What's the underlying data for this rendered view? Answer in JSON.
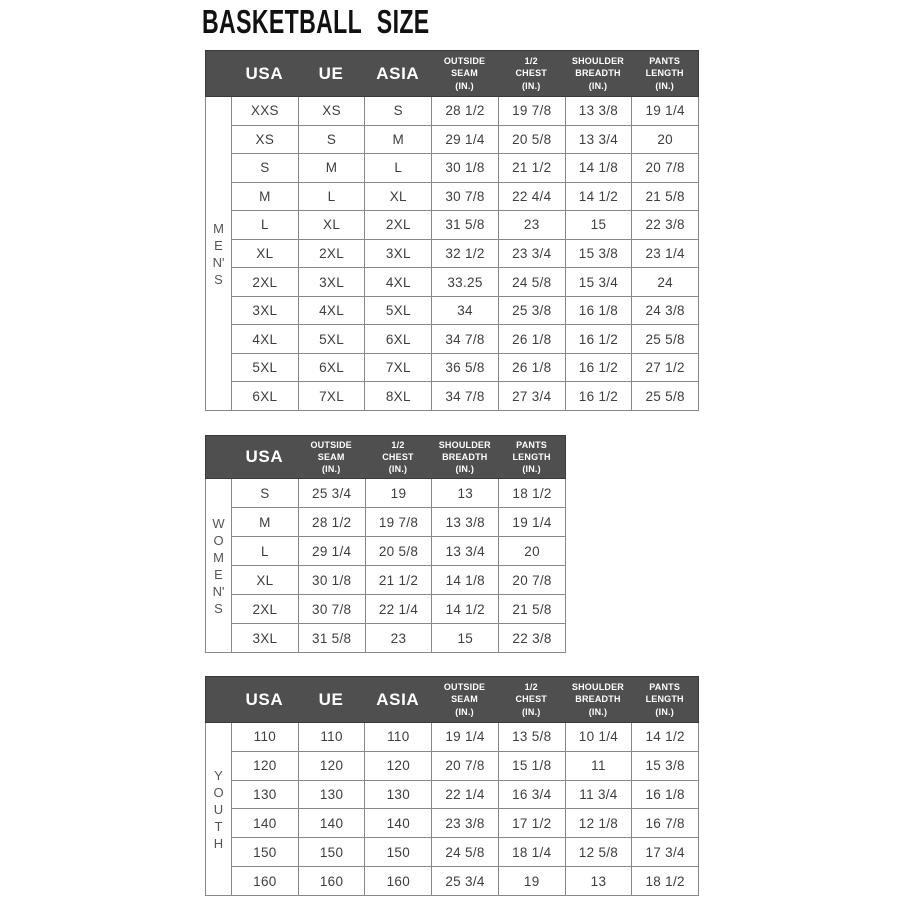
{
  "page": {
    "title": "BASKETBALL SIZE"
  },
  "colors": {
    "header_bg": "#4f4f4f",
    "header_border": "#3a3a3a",
    "header_text": "#ffffff",
    "grid_border": "#888888",
    "cell_text": "#3e3e3e",
    "label_text": "#555555",
    "title_text": "#111111"
  },
  "tables": {
    "mens": {
      "section_label": "MEN'S",
      "label_letters": [
        "M",
        "E",
        "N'",
        "S"
      ],
      "columns": [
        {
          "label": "USA",
          "style": "big"
        },
        {
          "label": "UE",
          "style": "big"
        },
        {
          "label": "ASIA",
          "style": "big"
        },
        {
          "label": "OUTSIDE\nSEAM\n(IN.)",
          "style": "small"
        },
        {
          "label": "1/2\nCHEST\n(IN.)",
          "style": "small"
        },
        {
          "label": "SHOULDER\nBREADTH\n(IN.)",
          "style": "small"
        },
        {
          "label": "PANTS\nLENGTH\n(IN.)",
          "style": "small"
        }
      ],
      "rows": [
        [
          "XXS",
          "XS",
          "S",
          "28 1/2",
          "19 7/8",
          "13 3/8",
          "19 1/4"
        ],
        [
          "XS",
          "S",
          "M",
          "29 1/4",
          "20 5/8",
          "13 3/4",
          "20"
        ],
        [
          "S",
          "M",
          "L",
          "30 1/8",
          "21 1/2",
          "14 1/8",
          "20 7/8"
        ],
        [
          "M",
          "L",
          "XL",
          "30 7/8",
          "22 4/4",
          "14 1/2",
          "21 5/8"
        ],
        [
          "L",
          "XL",
          "2XL",
          "31 5/8",
          "23",
          "15",
          "22 3/8"
        ],
        [
          "XL",
          "2XL",
          "3XL",
          "32 1/2",
          "23 3/4",
          "15 3/8",
          "23 1/4"
        ],
        [
          "2XL",
          "3XL",
          "4XL",
          "33.25",
          "24 5/8",
          "15 3/4",
          "24"
        ],
        [
          "3XL",
          "4XL",
          "5XL",
          "34",
          "25 3/8",
          "16 1/8",
          "24 3/8"
        ],
        [
          "4XL",
          "5XL",
          "6XL",
          "34 7/8",
          "26 1/8",
          "16 1/2",
          "25 5/8"
        ],
        [
          "5XL",
          "6XL",
          "7XL",
          "36 5/8",
          "26 1/8",
          "16 1/2",
          "27 1/2"
        ],
        [
          "6XL",
          "7XL",
          "8XL",
          "34 7/8",
          "27 3/4",
          "16 1/2",
          "25 5/8"
        ]
      ]
    },
    "womens": {
      "section_label": "WOMEN'S",
      "label_letters": [
        "W",
        "O",
        "M",
        "E",
        "N'",
        "S"
      ],
      "columns": [
        {
          "label": "USA",
          "style": "big"
        },
        {
          "label": "OUTSIDE\nSEAM\n(IN.)",
          "style": "small"
        },
        {
          "label": "1/2\nCHEST\n(IN.)",
          "style": "small"
        },
        {
          "label": "SHOULDER\nBREADTH\n(IN.)",
          "style": "small"
        },
        {
          "label": "PANTS\nLENGTH\n(IN.)",
          "style": "small"
        }
      ],
      "rows": [
        [
          "S",
          "25 3/4",
          "19",
          "13",
          "18 1/2"
        ],
        [
          "M",
          "28 1/2",
          "19 7/8",
          "13 3/8",
          "19 1/4"
        ],
        [
          "L",
          "29 1/4",
          "20 5/8",
          "13 3/4",
          "20"
        ],
        [
          "XL",
          "30 1/8",
          "21 1/2",
          "14 1/8",
          "20 7/8"
        ],
        [
          "2XL",
          "30 7/8",
          "22 1/4",
          "14 1/2",
          "21 5/8"
        ],
        [
          "3XL",
          "31 5/8",
          "23",
          "15",
          "22 3/8"
        ]
      ]
    },
    "youth": {
      "section_label": "YOUTH",
      "label_letters": [
        "Y",
        "O",
        "U",
        "T",
        "H"
      ],
      "columns": [
        {
          "label": "USA",
          "style": "big"
        },
        {
          "label": "UE",
          "style": "big"
        },
        {
          "label": "ASIA",
          "style": "big"
        },
        {
          "label": "OUTSIDE\nSEAM\n(IN.)",
          "style": "small"
        },
        {
          "label": "1/2\nCHEST\n(IN.)",
          "style": "small"
        },
        {
          "label": "SHOULDER\nBREADTH\n(IN.)",
          "style": "small"
        },
        {
          "label": "PANTS\nLENGTH\n(IN.)",
          "style": "small"
        }
      ],
      "rows": [
        [
          "110",
          "110",
          "110",
          "19 1/4",
          "13 5/8",
          "10 1/4",
          "14 1/2"
        ],
        [
          "120",
          "120",
          "120",
          "20 7/8",
          "15 1/8",
          "11",
          "15 3/8"
        ],
        [
          "130",
          "130",
          "130",
          "22 1/4",
          "16 3/4",
          "11 3/4",
          "16 1/8"
        ],
        [
          "140",
          "140",
          "140",
          "23 3/8",
          "17 1/2",
          "12 1/8",
          "16 7/8"
        ],
        [
          "150",
          "150",
          "150",
          "24 5/8",
          "18 1/4",
          "12 5/8",
          "17 3/4"
        ],
        [
          "160",
          "160",
          "160",
          "25 3/4",
          "19",
          "13",
          "18 1/2"
        ]
      ]
    }
  }
}
